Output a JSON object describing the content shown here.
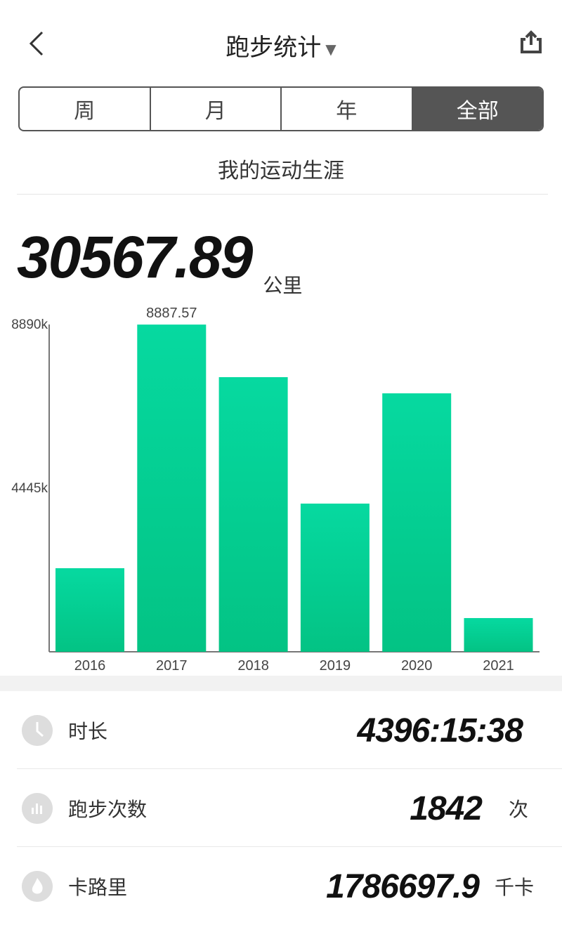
{
  "header": {
    "title": "跑步统计",
    "icons": {
      "back": "chevron-left-icon",
      "dropdown": "chevron-down-icon",
      "share": "share-icon"
    }
  },
  "tabs": [
    {
      "label": "周"
    },
    {
      "label": "月"
    },
    {
      "label": "年"
    },
    {
      "label": "全部",
      "active": true
    }
  ],
  "subtitle": "我的运动生涯",
  "total": {
    "value": "30567.89",
    "unit": "公里"
  },
  "chart_data": {
    "type": "bar",
    "categories": [
      "2016",
      "2017",
      "2018",
      "2019",
      "2020",
      "2021"
    ],
    "values": [
      2270,
      8887.57,
      7460,
      4025,
      7020,
      916
    ],
    "data_labels": [
      {
        "category": "2017",
        "text": "8887.57"
      }
    ],
    "yticks": [
      "8890k",
      "4445k"
    ],
    "ylim": [
      0,
      8890
    ],
    "color": "#05cf95",
    "grid": false
  },
  "stats": [
    {
      "icon": "clock-icon",
      "label": "时长",
      "value": "4396:15:38",
      "unit": ""
    },
    {
      "icon": "bar-chart-icon",
      "label": "跑步次数",
      "value": "1842",
      "unit": "次"
    },
    {
      "icon": "flame-icon",
      "label": "卡路里",
      "value": "1786697.9",
      "unit": "千卡"
    }
  ]
}
